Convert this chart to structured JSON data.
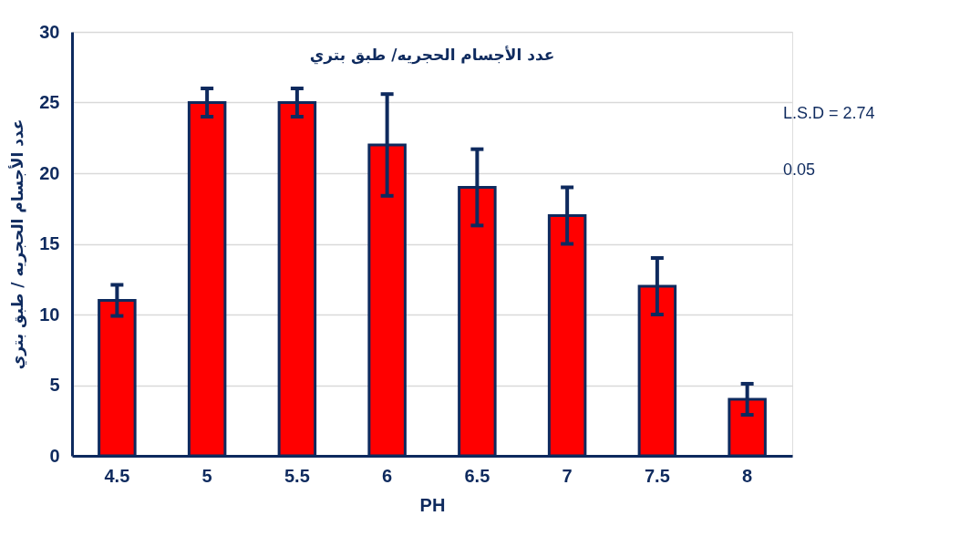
{
  "chart_data": {
    "type": "bar",
    "title": "عدد الأجسام الحجريه/ طبق بتري",
    "xlabel": "PH",
    "ylabel": "عدد الأجسام الحجريه / طبق بتري",
    "categories": [
      "4.5",
      "5",
      "5.5",
      "6",
      "6.5",
      "7",
      "7.5",
      "8"
    ],
    "values": [
      11,
      25,
      25,
      22,
      19,
      17,
      12,
      4
    ],
    "errors": [
      1.1,
      1,
      1,
      3.6,
      2.7,
      2,
      2,
      1.1
    ],
    "color": "#ff0000",
    "ylim": [
      0,
      30
    ],
    "yticks": [
      0,
      5,
      10,
      15,
      20,
      25,
      30
    ],
    "grid": "y",
    "annotations": [
      "L.S.D = 2.74",
      "0.05"
    ]
  }
}
